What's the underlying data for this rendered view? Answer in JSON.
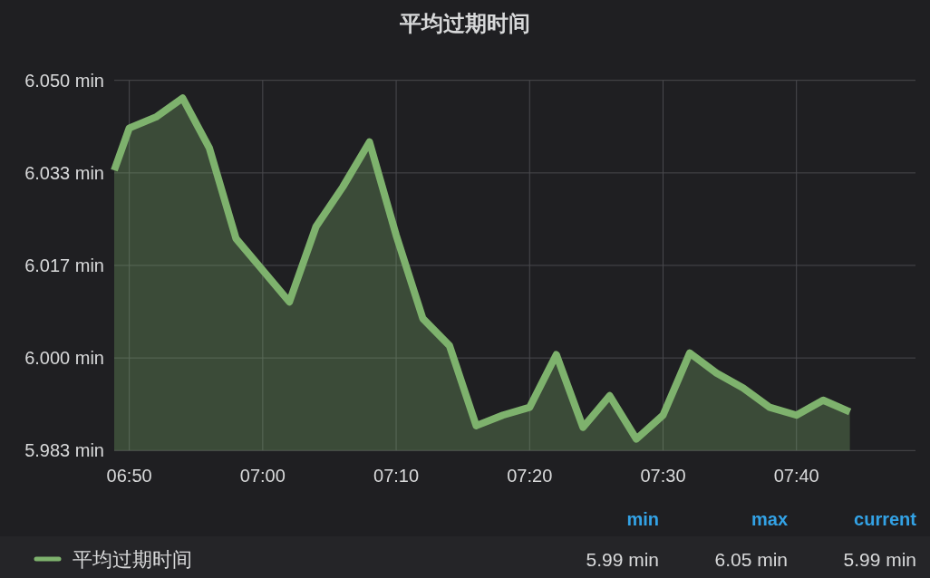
{
  "chart_data": {
    "type": "area",
    "title": "平均过期时间",
    "x": [
      6.8145,
      6.83333,
      6.86667,
      6.9,
      6.93333,
      6.96667,
      7.03333,
      7.06667,
      7.1,
      7.13333,
      7.16667,
      7.2,
      7.23333,
      7.26667,
      7.3,
      7.33333,
      7.36667,
      7.4,
      7.43333,
      7.46667,
      7.5,
      7.53333,
      7.56667,
      7.6,
      7.63333,
      7.66667,
      7.7,
      7.73333
    ],
    "xlim": [
      6.8145,
      7.8153
    ],
    "xticks": [
      {
        "value": 6.83333,
        "label": "06:50"
      },
      {
        "value": 7.0,
        "label": "07:00"
      },
      {
        "value": 7.16667,
        "label": "07:10"
      },
      {
        "value": 7.33333,
        "label": "07:20"
      },
      {
        "value": 7.5,
        "label": "07:30"
      },
      {
        "value": 7.66667,
        "label": "07:40"
      }
    ],
    "ylim": [
      5.98333,
      6.05
    ],
    "yticks": [
      {
        "value": 6.05,
        "label": "6.050 min"
      },
      {
        "value": 6.03333,
        "label": "6.033 min"
      },
      {
        "value": 6.01667,
        "label": "6.017 min"
      },
      {
        "value": 6.0,
        "label": "6.000 min"
      },
      {
        "value": 5.98333,
        "label": "5.983 min"
      }
    ],
    "series": [
      {
        "name": "平均过期时间",
        "color": "#7eb26d",
        "values": [
          6.0338,
          6.0414,
          6.0434,
          6.0468,
          6.0378,
          6.0215,
          6.0101,
          6.0237,
          6.0308,
          6.0389,
          6.0221,
          6.0071,
          6.0022,
          5.9878,
          5.9897,
          5.9911,
          6.0006,
          5.9875,
          5.9932,
          5.9854,
          5.9897,
          6.0009,
          5.9973,
          5.9946,
          5.9911,
          5.9897,
          5.9924,
          5.9903
        ]
      }
    ],
    "grid": true,
    "legend": "bottom",
    "annotations": [
      "min",
      "5.99 min",
      "max",
      "6.05 min",
      "current",
      "5.99 min"
    ]
  }
}
